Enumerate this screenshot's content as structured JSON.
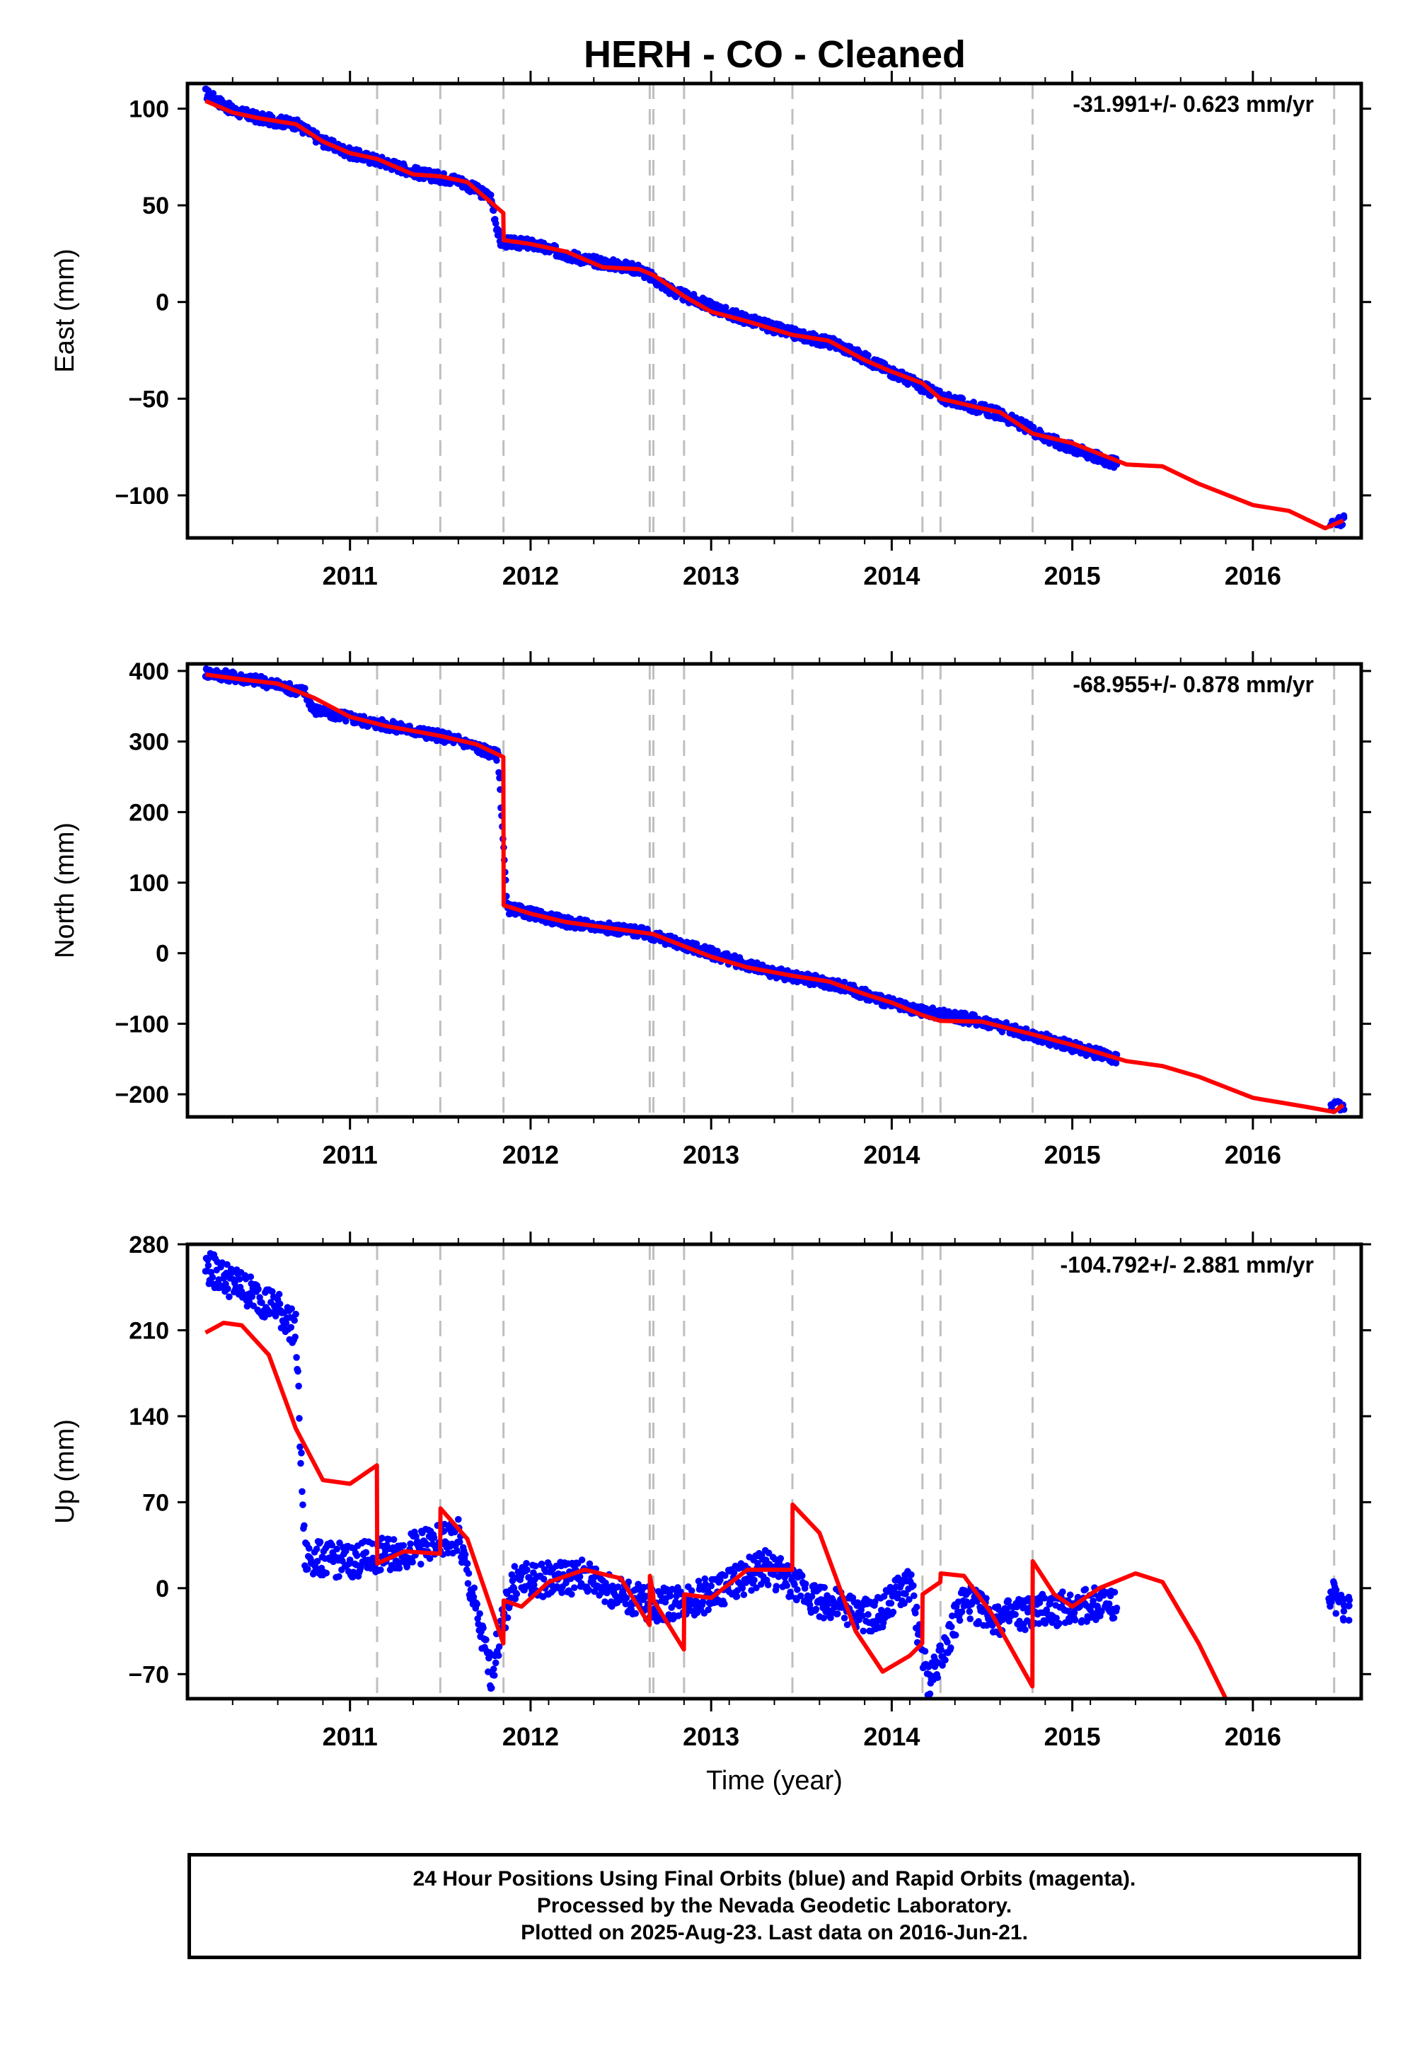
{
  "title": "HERH  - CO - Cleaned",
  "footer": {
    "line1": "24 Hour Positions Using Final Orbits (blue) and Rapid Orbits (magenta).",
    "line2": "Processed by the Nevada Geodetic Laboratory.",
    "line3": "Plotted on 2025-Aug-23. Last data on 2016-Jun-21."
  },
  "colors": {
    "data": "#0000ff",
    "model": "#ff0000",
    "event_line": "#bfbfbf"
  },
  "chart_data": [
    {
      "type": "scatter",
      "panel": "east",
      "ylabel": "East (mm)",
      "xlabel": "",
      "rate_label": "-31.991+/- 0.623 mm/yr",
      "xlim": [
        2010.1,
        2016.6
      ],
      "ylim": [
        -122,
        113
      ],
      "yticks": [
        100,
        50,
        0,
        -50,
        -100
      ],
      "yticklabels": [
        "100",
        "50",
        "0",
        "−50",
        "−100"
      ],
      "xticks": [
        2011,
        2012,
        2013,
        2014,
        2015,
        2016
      ],
      "event_lines": [
        2011.15,
        2011.5,
        2011.85,
        2012.66,
        2012.68,
        2012.85,
        2013.45,
        2014.17,
        2014.27,
        2014.78,
        2016.45
      ],
      "model": [
        [
          2010.2,
          104
        ],
        [
          2010.35,
          98
        ],
        [
          2010.5,
          95
        ],
        [
          2010.7,
          92
        ],
        [
          2010.85,
          83
        ],
        [
          2011.0,
          77
        ],
        [
          2011.15,
          74
        ],
        [
          2011.35,
          66
        ],
        [
          2011.5,
          65
        ],
        [
          2011.65,
          62
        ],
        [
          2011.849,
          46
        ],
        [
          2011.851,
          32
        ],
        [
          2012.0,
          30
        ],
        [
          2012.2,
          26
        ],
        [
          2012.4,
          18
        ],
        [
          2012.6,
          17
        ],
        [
          2012.68,
          14
        ],
        [
          2012.85,
          3
        ],
        [
          2013.0,
          -5
        ],
        [
          2013.2,
          -10
        ],
        [
          2013.45,
          -17
        ],
        [
          2013.65,
          -20
        ],
        [
          2013.85,
          -30
        ],
        [
          2014.0,
          -36
        ],
        [
          2014.17,
          -42
        ],
        [
          2014.27,
          -50
        ],
        [
          2014.5,
          -55
        ],
        [
          2014.6,
          -57
        ],
        [
          2014.78,
          -68
        ],
        [
          2015.0,
          -73
        ],
        [
          2015.3,
          -84
        ],
        [
          2015.5,
          -85
        ],
        [
          2015.7,
          -94
        ],
        [
          2016.0,
          -105
        ],
        [
          2016.2,
          -108
        ],
        [
          2016.4,
          -117
        ],
        [
          2016.5,
          -113
        ]
      ],
      "points": [
        [
          2010.2,
          108
        ],
        [
          2010.35,
          99
        ],
        [
          2010.5,
          95
        ],
        [
          2010.7,
          92
        ],
        [
          2010.85,
          83
        ],
        [
          2011.0,
          77
        ],
        [
          2011.2,
          72
        ],
        [
          2011.4,
          66
        ],
        [
          2011.6,
          63
        ],
        [
          2011.78,
          54
        ],
        [
          2011.83,
          31
        ],
        [
          2012.0,
          30
        ],
        [
          2012.3,
          22
        ],
        [
          2012.6,
          17
        ],
        [
          2012.8,
          5
        ],
        [
          2013.1,
          -6
        ],
        [
          2013.4,
          -15
        ],
        [
          2013.7,
          -22
        ],
        [
          2014.0,
          -36
        ],
        [
          2014.3,
          -50
        ],
        [
          2014.6,
          -58
        ],
        [
          2014.9,
          -72
        ],
        [
          2015.25,
          -84
        ],
        [
          2016.45,
          -113
        ]
      ]
    },
    {
      "type": "scatter",
      "panel": "north",
      "ylabel": "North (mm)",
      "xlabel": "",
      "rate_label": "-68.955+/- 0.878 mm/yr",
      "xlim": [
        2010.1,
        2016.6
      ],
      "ylim": [
        -232,
        410
      ],
      "yticks": [
        400,
        300,
        200,
        100,
        0,
        -100,
        -200
      ],
      "yticklabels": [
        "400",
        "300",
        "200",
        "100",
        "0",
        "−100",
        "−200"
      ],
      "xticks": [
        2011,
        2012,
        2013,
        2014,
        2015,
        2016
      ],
      "event_lines": [
        2011.15,
        2011.5,
        2011.85,
        2012.66,
        2012.68,
        2012.85,
        2013.45,
        2014.17,
        2014.27,
        2014.78,
        2016.45
      ],
      "model": [
        [
          2010.2,
          395
        ],
        [
          2010.4,
          388
        ],
        [
          2010.6,
          382
        ],
        [
          2010.8,
          362
        ],
        [
          2011.0,
          335
        ],
        [
          2011.2,
          322
        ],
        [
          2011.5,
          308
        ],
        [
          2011.7,
          296
        ],
        [
          2011.849,
          278
        ],
        [
          2011.851,
          68
        ],
        [
          2012.0,
          56
        ],
        [
          2012.2,
          44
        ],
        [
          2012.4,
          37
        ],
        [
          2012.68,
          27
        ],
        [
          2012.85,
          10
        ],
        [
          2013.0,
          -5
        ],
        [
          2013.2,
          -20
        ],
        [
          2013.45,
          -32
        ],
        [
          2013.65,
          -40
        ],
        [
          2013.85,
          -58
        ],
        [
          2014.0,
          -70
        ],
        [
          2014.17,
          -88
        ],
        [
          2014.27,
          -96
        ],
        [
          2014.5,
          -97
        ],
        [
          2014.78,
          -115
        ],
        [
          2015.0,
          -130
        ],
        [
          2015.3,
          -153
        ],
        [
          2015.5,
          -160
        ],
        [
          2015.7,
          -175
        ],
        [
          2016.0,
          -205
        ],
        [
          2016.3,
          -218
        ],
        [
          2016.45,
          -225
        ],
        [
          2016.5,
          -215
        ]
      ],
      "points": [
        [
          2010.2,
          398
        ],
        [
          2010.5,
          386
        ],
        [
          2010.75,
          370
        ],
        [
          2010.8,
          345
        ],
        [
          2011.1,
          328
        ],
        [
          2011.4,
          313
        ],
        [
          2011.6,
          302
        ],
        [
          2011.82,
          280
        ],
        [
          2011.87,
          64
        ],
        [
          2012.2,
          44
        ],
        [
          2012.6,
          30
        ],
        [
          2012.9,
          8
        ],
        [
          2013.3,
          -25
        ],
        [
          2013.7,
          -45
        ],
        [
          2014.1,
          -80
        ],
        [
          2014.5,
          -96
        ],
        [
          2014.9,
          -125
        ],
        [
          2015.25,
          -150
        ],
        [
          2016.45,
          -215
        ]
      ]
    },
    {
      "type": "scatter",
      "panel": "up",
      "ylabel": "Up (mm)",
      "xlabel": "Time (year)",
      "rate_label": "-104.792+/- 2.881 mm/yr",
      "xlim": [
        2010.1,
        2016.6
      ],
      "ylim": [
        -90,
        280
      ],
      "yticks": [
        280,
        210,
        140,
        70,
        0,
        -70
      ],
      "yticklabels": [
        "280",
        "210",
        "140",
        "70",
        "0",
        "−70"
      ],
      "xticks": [
        2011,
        2012,
        2013,
        2014,
        2015,
        2016
      ],
      "event_lines": [
        2011.15,
        2011.5,
        2011.85,
        2012.66,
        2012.68,
        2012.85,
        2013.45,
        2014.17,
        2014.27,
        2014.78,
        2016.45
      ],
      "model": [
        [
          2010.2,
          208
        ],
        [
          2010.3,
          216
        ],
        [
          2010.4,
          214
        ],
        [
          2010.55,
          190
        ],
        [
          2010.7,
          130
        ],
        [
          2010.85,
          88
        ],
        [
          2011.0,
          85
        ],
        [
          2011.149,
          100
        ],
        [
          2011.151,
          20
        ],
        [
          2011.3,
          30
        ],
        [
          2011.499,
          28
        ],
        [
          2011.501,
          65
        ],
        [
          2011.65,
          40
        ],
        [
          2011.849,
          -45
        ],
        [
          2011.851,
          -10
        ],
        [
          2011.95,
          -15
        ],
        [
          2012.1,
          5
        ],
        [
          2012.3,
          15
        ],
        [
          2012.5,
          8
        ],
        [
          2012.659,
          -30
        ],
        [
          2012.661,
          10
        ],
        [
          2012.679,
          -5
        ],
        [
          2012.681,
          -10
        ],
        [
          2012.849,
          -50
        ],
        [
          2012.851,
          -5
        ],
        [
          2013.0,
          -8
        ],
        [
          2013.2,
          15
        ],
        [
          2013.449,
          15
        ],
        [
          2013.451,
          68
        ],
        [
          2013.6,
          45
        ],
        [
          2013.8,
          -35
        ],
        [
          2013.95,
          -68
        ],
        [
          2014.1,
          -55
        ],
        [
          2014.169,
          -45
        ],
        [
          2014.171,
          -5
        ],
        [
          2014.269,
          5
        ],
        [
          2014.271,
          12
        ],
        [
          2014.4,
          10
        ],
        [
          2014.55,
          -20
        ],
        [
          2014.779,
          -80
        ],
        [
          2014.781,
          22
        ],
        [
          2014.9,
          -5
        ],
        [
          2015.0,
          -15
        ],
        [
          2015.15,
          0
        ],
        [
          2015.35,
          12
        ],
        [
          2015.5,
          5
        ],
        [
          2015.7,
          -45
        ],
        [
          2015.85,
          -90
        ]
      ],
      "points": [
        [
          2010.2,
          262
        ],
        [
          2010.4,
          245
        ],
        [
          2010.6,
          228
        ],
        [
          2010.7,
          210
        ],
        [
          2010.75,
          25
        ],
        [
          2011.0,
          22
        ],
        [
          2011.3,
          30
        ],
        [
          2011.6,
          42
        ],
        [
          2011.78,
          -70
        ],
        [
          2011.9,
          5
        ],
        [
          2012.3,
          10
        ],
        [
          2012.5,
          -5
        ],
        [
          2012.7,
          -15
        ],
        [
          2013.0,
          -5
        ],
        [
          2013.3,
          18
        ],
        [
          2013.6,
          -10
        ],
        [
          2013.9,
          -25
        ],
        [
          2014.1,
          5
        ],
        [
          2014.2,
          -78
        ],
        [
          2014.4,
          -10
        ],
        [
          2014.6,
          -25
        ],
        [
          2015.0,
          -15
        ],
        [
          2015.25,
          -10
        ],
        [
          2016.42,
          0
        ],
        [
          2016.48,
          -15
        ]
      ]
    }
  ]
}
